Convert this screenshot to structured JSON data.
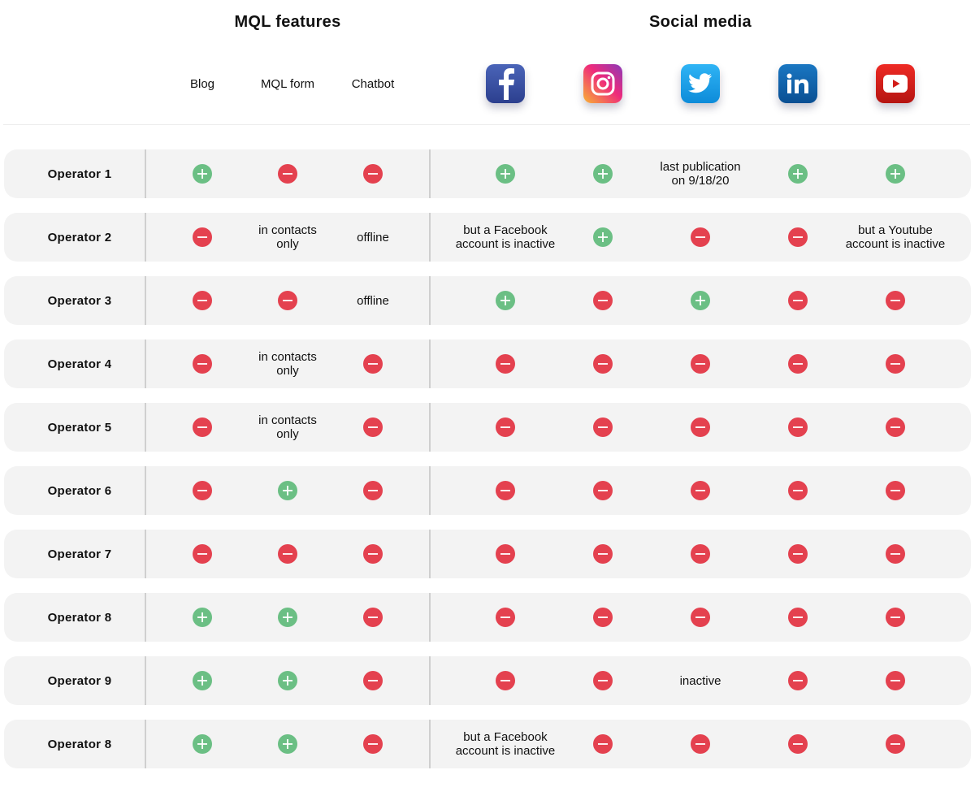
{
  "groups": {
    "mql": "MQL features",
    "social": "Social media"
  },
  "columns": [
    {
      "key": "blog",
      "label": "Blog"
    },
    {
      "key": "mql_form",
      "label": "MQL form"
    },
    {
      "key": "chatbot",
      "label": "Chatbot"
    },
    {
      "key": "facebook",
      "icon": "facebook-icon"
    },
    {
      "key": "instagram",
      "icon": "instagram-icon"
    },
    {
      "key": "twitter",
      "icon": "twitter-icon"
    },
    {
      "key": "linkedin",
      "icon": "linkedin-icon"
    },
    {
      "key": "youtube",
      "icon": "youtube-icon"
    }
  ],
  "colors": {
    "yes": "#6bbf84",
    "no": "#e4414f",
    "row_bg": "#f3f3f3"
  },
  "rows": [
    {
      "label": "Operator 1",
      "cells": [
        {
          "status": "yes"
        },
        {
          "status": "no"
        },
        {
          "status": "no"
        },
        {
          "status": "yes"
        },
        {
          "status": "yes"
        },
        {
          "text": "last publication\non 9/18/20"
        },
        {
          "status": "yes"
        },
        {
          "status": "yes"
        }
      ]
    },
    {
      "label": "Operator 2",
      "cells": [
        {
          "status": "no"
        },
        {
          "text": "in contacts\nonly"
        },
        {
          "text": "offline"
        },
        {
          "text": "but a Facebook\naccount is inactive"
        },
        {
          "status": "yes"
        },
        {
          "status": "no"
        },
        {
          "status": "no"
        },
        {
          "text": "but a Youtube\naccount is inactive"
        }
      ]
    },
    {
      "label": "Operator 3",
      "cells": [
        {
          "status": "no"
        },
        {
          "status": "no"
        },
        {
          "text": "offline"
        },
        {
          "status": "yes"
        },
        {
          "status": "no"
        },
        {
          "status": "yes"
        },
        {
          "status": "no"
        },
        {
          "status": "no"
        }
      ]
    },
    {
      "label": "Operator 4",
      "cells": [
        {
          "status": "no"
        },
        {
          "text": "in contacts\nonly"
        },
        {
          "status": "no"
        },
        {
          "status": "no"
        },
        {
          "status": "no"
        },
        {
          "status": "no"
        },
        {
          "status": "no"
        },
        {
          "status": "no"
        }
      ]
    },
    {
      "label": "Operator 5",
      "cells": [
        {
          "status": "no"
        },
        {
          "text": "in contacts\nonly"
        },
        {
          "status": "no"
        },
        {
          "status": "no"
        },
        {
          "status": "no"
        },
        {
          "status": "no"
        },
        {
          "status": "no"
        },
        {
          "status": "no"
        }
      ]
    },
    {
      "label": "Operator 6",
      "cells": [
        {
          "status": "no"
        },
        {
          "status": "yes"
        },
        {
          "status": "no"
        },
        {
          "status": "no"
        },
        {
          "status": "no"
        },
        {
          "status": "no"
        },
        {
          "status": "no"
        },
        {
          "status": "no"
        }
      ]
    },
    {
      "label": "Operator 7",
      "cells": [
        {
          "status": "no"
        },
        {
          "status": "no"
        },
        {
          "status": "no"
        },
        {
          "status": "no"
        },
        {
          "status": "no"
        },
        {
          "status": "no"
        },
        {
          "status": "no"
        },
        {
          "status": "no"
        }
      ]
    },
    {
      "label": "Operator 8",
      "cells": [
        {
          "status": "yes"
        },
        {
          "status": "yes"
        },
        {
          "status": "no"
        },
        {
          "status": "no"
        },
        {
          "status": "no"
        },
        {
          "status": "no"
        },
        {
          "status": "no"
        },
        {
          "status": "no"
        }
      ]
    },
    {
      "label": "Operator 9",
      "cells": [
        {
          "status": "yes"
        },
        {
          "status": "yes"
        },
        {
          "status": "no"
        },
        {
          "status": "no"
        },
        {
          "status": "no"
        },
        {
          "text": "inactive"
        },
        {
          "status": "no"
        },
        {
          "status": "no"
        }
      ]
    },
    {
      "label": "Operator 8",
      "cells": [
        {
          "status": "yes"
        },
        {
          "status": "yes"
        },
        {
          "status": "no"
        },
        {
          "text": "but a Facebook\naccount is inactive"
        },
        {
          "status": "no"
        },
        {
          "status": "no"
        },
        {
          "status": "no"
        },
        {
          "status": "no"
        }
      ]
    }
  ]
}
